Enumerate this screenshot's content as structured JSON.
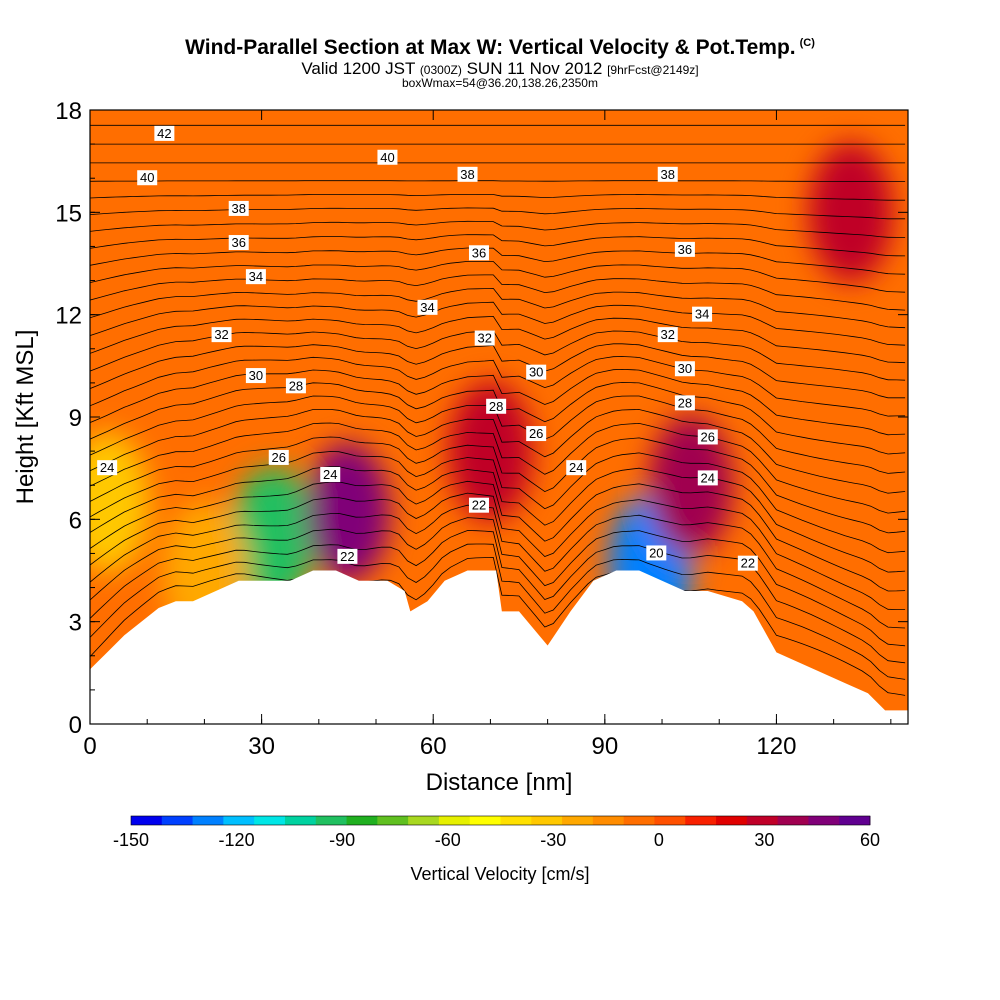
{
  "header": {
    "title": "Wind-Parallel Section at Max W: Vertical Velocity & Pot.Temp.",
    "title_mark": "(C)",
    "valid_a": "Valid 1200 JST",
    "valid_b": "(0300Z)",
    "valid_c": "SUN 11 Nov 2012",
    "valid_d": "[9hrFcst@2149z]",
    "box": "boxWmax=54@36.20,138.26,2350m"
  },
  "chart_data": {
    "type": "heatmap",
    "xlabel": "Distance [nm]",
    "ylabel": "Height [Kft MSL]",
    "xlim": [
      0,
      143
    ],
    "ylim": [
      0,
      18
    ],
    "x_ticks": [
      0,
      30,
      60,
      90,
      120
    ],
    "y_ticks": [
      0,
      3,
      6,
      9,
      12,
      15,
      18
    ],
    "colorbar": {
      "title": "Vertical Velocity [cm/s]",
      "ticks": [
        -150,
        -120,
        -90,
        -60,
        -30,
        0,
        30,
        60
      ],
      "range": [
        -150,
        60
      ],
      "colors": [
        "#0000ee",
        "#0040ff",
        "#0080ff",
        "#00bfff",
        "#00e6e6",
        "#00d2a0",
        "#20c060",
        "#20b020",
        "#60c020",
        "#a8d820",
        "#e6f000",
        "#ffff00",
        "#ffe000",
        "#ffc800",
        "#ffa800",
        "#ff8c00",
        "#ff6e00",
        "#ff5000",
        "#f82000",
        "#e00000",
        "#c00028",
        "#a00050",
        "#800078",
        "#600090"
      ]
    },
    "terrain_kft": [
      [
        0,
        1.6
      ],
      [
        3,
        2.1
      ],
      [
        6,
        2.6
      ],
      [
        9,
        3.0
      ],
      [
        12,
        3.4
      ],
      [
        15,
        3.6
      ],
      [
        18,
        3.6
      ],
      [
        22,
        3.9
      ],
      [
        26,
        4.2
      ],
      [
        30,
        4.2
      ],
      [
        35,
        4.2
      ],
      [
        39,
        4.5
      ],
      [
        43,
        4.5
      ],
      [
        47,
        4.2
      ],
      [
        52,
        4.2
      ],
      [
        55,
        3.9
      ],
      [
        56,
        3.3
      ],
      [
        59,
        3.6
      ],
      [
        62,
        4.2
      ],
      [
        66,
        4.5
      ],
      [
        71,
        4.5
      ],
      [
        72,
        3.3
      ],
      [
        75,
        3.3
      ],
      [
        78,
        2.7
      ],
      [
        80,
        2.3
      ],
      [
        84,
        3.3
      ],
      [
        88,
        4.2
      ],
      [
        92,
        4.5
      ],
      [
        96,
        4.5
      ],
      [
        100,
        4.2
      ],
      [
        104,
        3.9
      ],
      [
        108,
        3.9
      ],
      [
        114,
        3.6
      ],
      [
        116,
        3.3
      ],
      [
        118,
        2.7
      ],
      [
        120,
        2.1
      ],
      [
        124,
        1.8
      ],
      [
        128,
        1.5
      ],
      [
        132,
        1.2
      ],
      [
        136,
        0.9
      ],
      [
        139,
        0.4
      ],
      [
        143,
        0.4
      ]
    ],
    "velocity_features_cm_s": [
      {
        "x": 32,
        "y_kft": 5.5,
        "value": -95
      },
      {
        "x": 98,
        "y_kft": 4.7,
        "value": -130
      },
      {
        "x": 45,
        "y_kft": 6.2,
        "value": 45
      },
      {
        "x": 105,
        "y_kft": 7.0,
        "value": 40
      },
      {
        "x": 70,
        "y_kft": 8.0,
        "value": 25
      },
      {
        "x": 133,
        "y_kft": 15.0,
        "value": 25
      },
      {
        "x": 3,
        "y_kft": 6.5,
        "value": -35
      },
      {
        "x": 20,
        "y_kft": 4.5,
        "value": -20
      }
    ],
    "theta_contour_labels": [
      {
        "text": "42",
        "x": 13,
        "y_kft": 17.3
      },
      {
        "text": "40",
        "x": 10,
        "y_kft": 16.0
      },
      {
        "text": "40",
        "x": 52,
        "y_kft": 16.6
      },
      {
        "text": "38",
        "x": 26,
        "y_kft": 15.1
      },
      {
        "text": "38",
        "x": 66,
        "y_kft": 16.1
      },
      {
        "text": "38",
        "x": 101,
        "y_kft": 16.1
      },
      {
        "text": "36",
        "x": 26,
        "y_kft": 14.1
      },
      {
        "text": "36",
        "x": 68,
        "y_kft": 13.8
      },
      {
        "text": "36",
        "x": 104,
        "y_kft": 13.9
      },
      {
        "text": "34",
        "x": 29,
        "y_kft": 13.1
      },
      {
        "text": "34",
        "x": 59,
        "y_kft": 12.2
      },
      {
        "text": "34",
        "x": 107,
        "y_kft": 12.0
      },
      {
        "text": "32",
        "x": 23,
        "y_kft": 11.4
      },
      {
        "text": "32",
        "x": 69,
        "y_kft": 11.3
      },
      {
        "text": "32",
        "x": 101,
        "y_kft": 11.4
      },
      {
        "text": "30",
        "x": 29,
        "y_kft": 10.2
      },
      {
        "text": "30",
        "x": 78,
        "y_kft": 10.3
      },
      {
        "text": "30",
        "x": 104,
        "y_kft": 10.4
      },
      {
        "text": "28",
        "x": 36,
        "y_kft": 9.9
      },
      {
        "text": "28",
        "x": 71,
        "y_kft": 9.3
      },
      {
        "text": "28",
        "x": 104,
        "y_kft": 9.4
      },
      {
        "text": "26",
        "x": 33,
        "y_kft": 7.8
      },
      {
        "text": "26",
        "x": 78,
        "y_kft": 8.5
      },
      {
        "text": "26",
        "x": 108,
        "y_kft": 8.4
      },
      {
        "text": "24",
        "x": 3,
        "y_kft": 7.5
      },
      {
        "text": "24",
        "x": 42,
        "y_kft": 7.3
      },
      {
        "text": "24",
        "x": 85,
        "y_kft": 7.5
      },
      {
        "text": "24",
        "x": 108,
        "y_kft": 7.2
      },
      {
        "text": "22",
        "x": 68,
        "y_kft": 6.4
      },
      {
        "text": "22",
        "x": 45,
        "y_kft": 4.9
      },
      {
        "text": "22",
        "x": 115,
        "y_kft": 4.7
      },
      {
        "text": "20",
        "x": 99,
        "y_kft": 5.0
      }
    ]
  }
}
